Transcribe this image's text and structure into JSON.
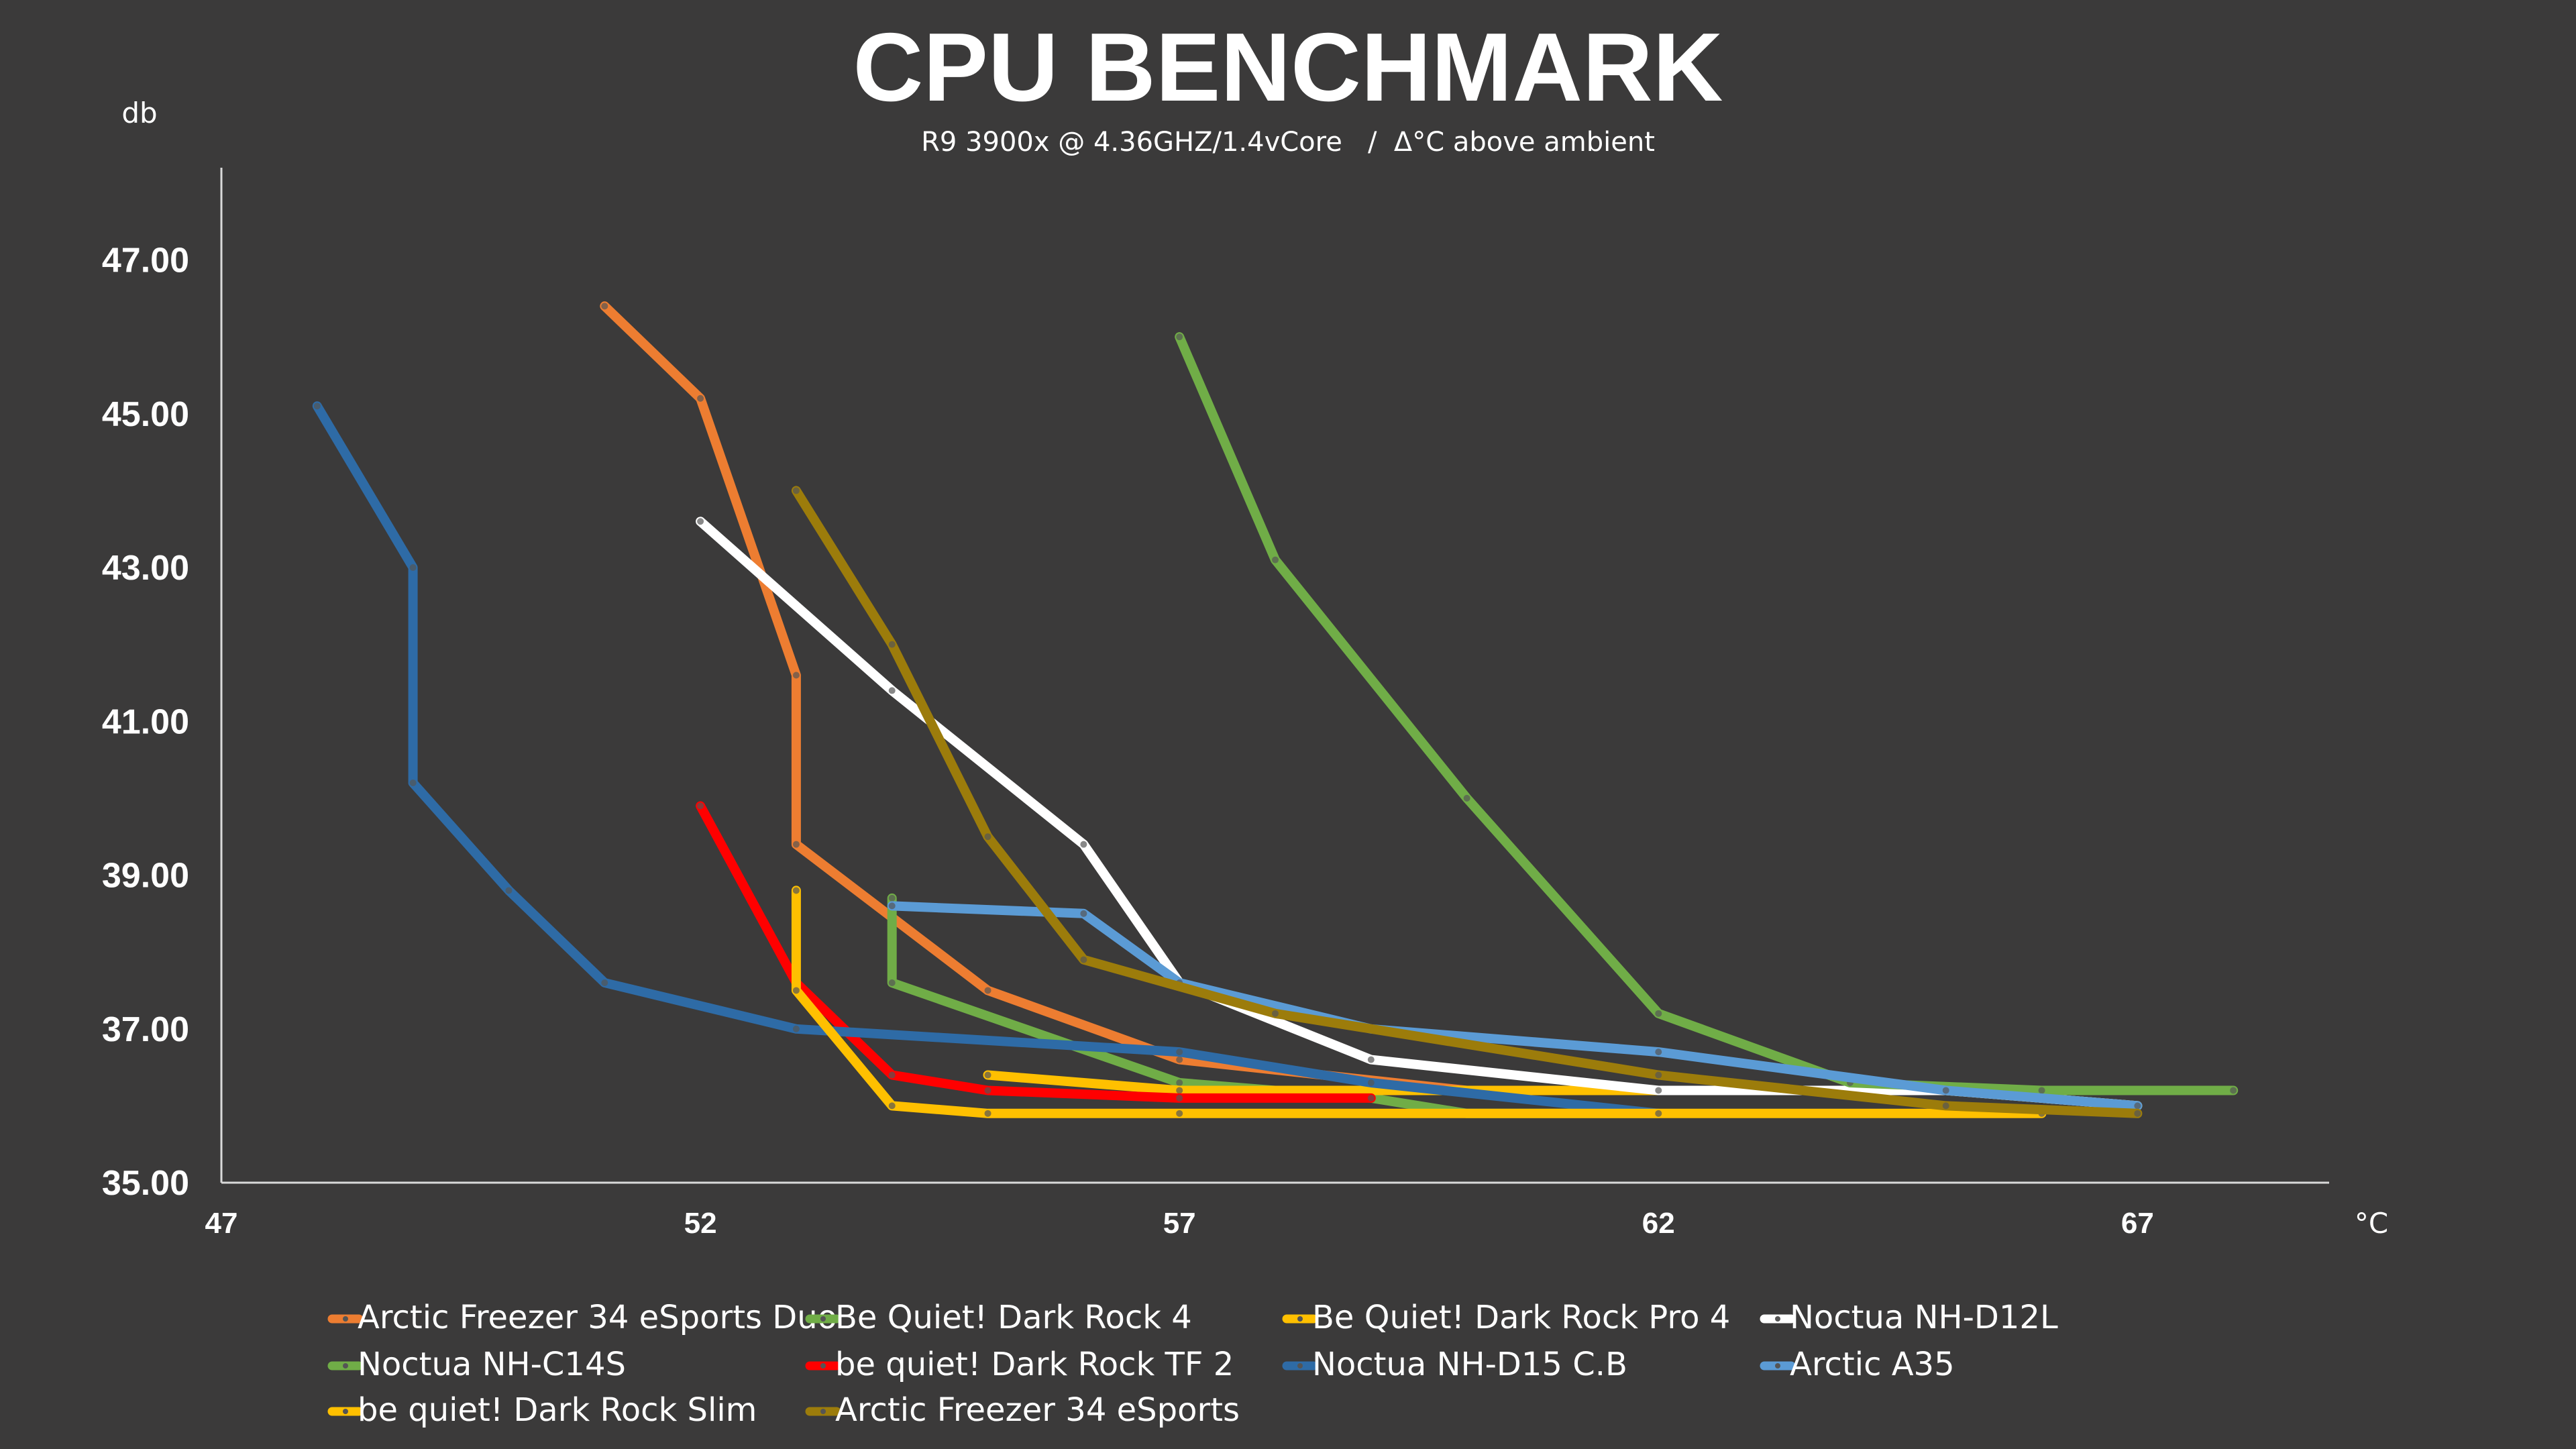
{
  "chart_data": {
    "type": "line",
    "title": "CPU BENCHMARK",
    "subtitle": "R9 3900x @ 4.36GHZ/1.4vCore   /  Δ°C above ambient",
    "ylabel": "db",
    "xlabel": "°C",
    "xlim": [
      47,
      69
    ],
    "ylim": [
      35,
      48.2
    ],
    "x_ticks": [
      47,
      52,
      57,
      62,
      67
    ],
    "y_ticks": [
      35.0,
      37.0,
      39.0,
      41.0,
      43.0,
      45.0,
      47.0
    ],
    "y_tick_labels": [
      "35.00",
      "37.00",
      "39.00",
      "41.00",
      "43.00",
      "45.00",
      "47.00"
    ],
    "x_tick_labels": [
      "47",
      "52",
      "57",
      "62",
      "67"
    ],
    "grid": false,
    "legend": "bottom",
    "series": [
      {
        "name": "Arctic Freezer 34 eSports Duo",
        "color": "#ed7d31",
        "points": [
          [
            51,
            46.4
          ],
          [
            52,
            45.2
          ],
          [
            53,
            41.6
          ],
          [
            53,
            39.4
          ],
          [
            55,
            37.5
          ],
          [
            57,
            36.6
          ],
          [
            60,
            36.2
          ]
        ]
      },
      {
        "name": "Be Quiet! Dark Rock 4",
        "color": "#70ad47",
        "points": [
          [
            54,
            38.7
          ],
          [
            54,
            37.6
          ],
          [
            57,
            36.3
          ],
          [
            59,
            36.1
          ],
          [
            60,
            35.9
          ],
          [
            62,
            35.9
          ]
        ]
      },
      {
        "name": "Be Quiet! Dark Rock Pro 4",
        "color": "#ffc000",
        "points": [
          [
            55,
            36.4
          ],
          [
            57,
            36.2
          ],
          [
            62,
            36.2
          ],
          [
            65,
            36.2
          ],
          [
            67,
            36.0
          ]
        ]
      },
      {
        "name": "Noctua NH-D12L",
        "color": "#ffffff",
        "points": [
          [
            52,
            43.6
          ],
          [
            54,
            41.4
          ],
          [
            56,
            39.4
          ],
          [
            57,
            37.6
          ],
          [
            59,
            36.6
          ],
          [
            62,
            36.2
          ],
          [
            65,
            36.2
          ],
          [
            67,
            36.0
          ]
        ]
      },
      {
        "name": "Noctua NH-C14S",
        "color": "#70ad47",
        "points": [
          [
            57,
            46.0
          ],
          [
            58,
            43.1
          ],
          [
            60,
            40.0
          ],
          [
            62,
            37.2
          ],
          [
            64,
            36.3
          ],
          [
            66,
            36.2
          ],
          [
            68,
            36.2
          ]
        ]
      },
      {
        "name": "be quiet! Dark Rock TF 2",
        "color": "#ff0000",
        "points": [
          [
            52,
            39.9
          ],
          [
            53,
            37.6
          ],
          [
            54,
            36.4
          ],
          [
            55,
            36.2
          ],
          [
            57,
            36.1
          ],
          [
            59,
            36.1
          ]
        ]
      },
      {
        "name": "Noctua NH-D15 C.B",
        "color": "#2e6ba6",
        "points": [
          [
            48,
            45.1
          ],
          [
            49,
            43.0
          ],
          [
            49,
            40.2
          ],
          [
            50,
            38.8
          ],
          [
            51,
            37.6
          ],
          [
            53,
            37.0
          ],
          [
            57,
            36.7
          ],
          [
            59,
            36.3
          ],
          [
            62,
            35.9
          ]
        ]
      },
      {
        "name": "Arctic A35",
        "color": "#5b9bd5",
        "points": [
          [
            54,
            38.6
          ],
          [
            56,
            38.5
          ],
          [
            57,
            37.6
          ],
          [
            59,
            37.0
          ],
          [
            62,
            36.7
          ],
          [
            65,
            36.2
          ],
          [
            67,
            36.0
          ]
        ]
      },
      {
        "name": "be quiet! Dark Rock Slim",
        "color": "#ffc000",
        "points": [
          [
            53,
            38.8
          ],
          [
            53,
            37.5
          ],
          [
            54,
            36.0
          ],
          [
            55,
            35.9
          ],
          [
            57,
            35.9
          ],
          [
            62,
            35.9
          ],
          [
            66,
            35.9
          ]
        ]
      },
      {
        "name": "Arctic Freezer 34 eSports",
        "color": "#9c7c0b",
        "points": [
          [
            53,
            44.0
          ],
          [
            54,
            42.0
          ],
          [
            55,
            39.5
          ],
          [
            56,
            37.9
          ],
          [
            58,
            37.2
          ],
          [
            62,
            36.4
          ],
          [
            65,
            36.0
          ],
          [
            67,
            35.9
          ]
        ]
      }
    ]
  }
}
